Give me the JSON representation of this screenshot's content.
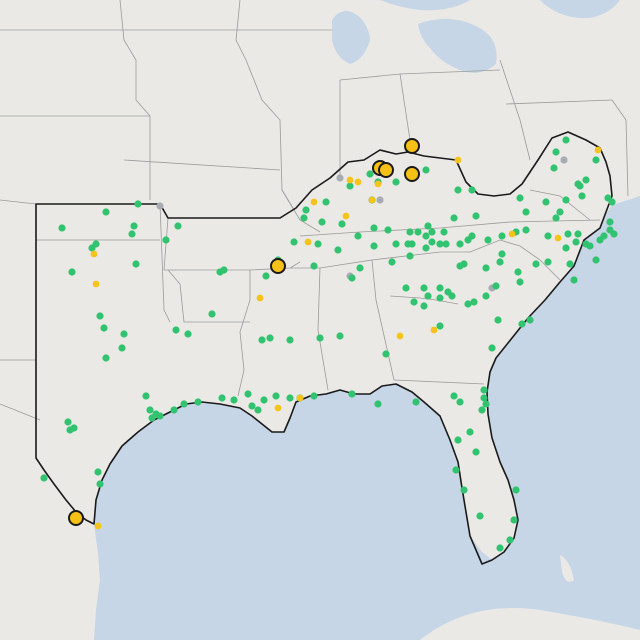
{
  "map": {
    "colors": {
      "land": "#ebe9e6",
      "water": "#c6d6e6",
      "state_border": "#9a9a9a",
      "region_outline": "#1a1a1a",
      "marker_green": "#31c370",
      "marker_yellow": "#f4c41b",
      "marker_gray": "#a6acb2",
      "marker_large_fill": "#f5c117",
      "marker_large_stroke": "#1a1a1a"
    },
    "marker_categories": [
      "green",
      "yellow",
      "gray",
      "large-yellow"
    ]
  }
}
